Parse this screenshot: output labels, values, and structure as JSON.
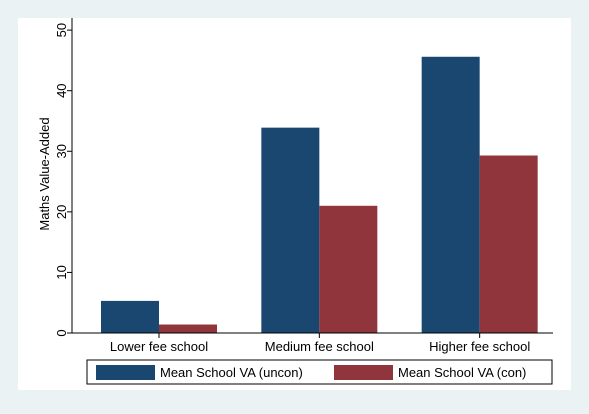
{
  "chart_data": {
    "type": "bar",
    "title": "",
    "xlabel": "",
    "ylabel": "Maths Value-Added",
    "ylim": [
      0,
      52
    ],
    "yticks": [
      0,
      10,
      20,
      30,
      40,
      50
    ],
    "grid": false,
    "legend_position": "bottom",
    "categories": [
      "Lower fee school",
      "Medium fee school",
      "Higher fee school"
    ],
    "series": [
      {
        "name": "Mean School VA (uncon)",
        "values": [
          5.3,
          33.9,
          45.6
        ],
        "color": "#1a476f"
      },
      {
        "name": "Mean School VA (con)",
        "values": [
          1.4,
          21.0,
          29.3
        ],
        "color": "#90353b"
      }
    ]
  }
}
